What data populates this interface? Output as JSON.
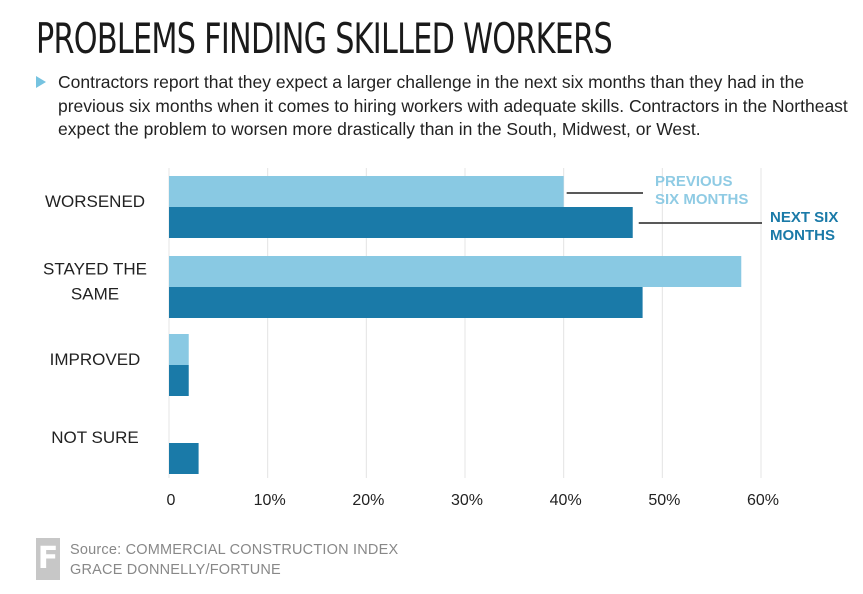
{
  "header": {
    "title": "PROBLEMS FINDING SKILLED WORKERS",
    "subtitle": "Contractors report that they expect a larger challenge in the next six months than they had in the previous six months when it comes to hiring workers with adequate skills. Contractors in the Northeast expect the problem to worsen more drastically than in the South, Midwest, or West."
  },
  "chart_data": {
    "type": "bar",
    "orientation": "horizontal",
    "categories": [
      "WORSENED",
      "STAYED THE SAME",
      "IMPROVED",
      "NOT SURE"
    ],
    "series": [
      {
        "name": "PREVIOUS SIX MONTHS",
        "values": [
          40,
          58,
          2,
          0
        ],
        "color": "#89c9e3"
      },
      {
        "name": "NEXT SIX MONTHS",
        "values": [
          47,
          48,
          2,
          3
        ],
        "color": "#1a7aa8"
      }
    ],
    "xticks": [
      "0",
      "10%",
      "20%",
      "30%",
      "40%",
      "50%",
      "60%"
    ],
    "xlim": [
      0,
      60
    ],
    "grid": true,
    "legend": "annotation-callouts"
  },
  "footer": {
    "source_line1": "Source: COMMERCIAL CONSTRUCTION INDEX",
    "source_line2": "GRACE DONNELLY/FORTUNE",
    "logo_letter": "F"
  }
}
